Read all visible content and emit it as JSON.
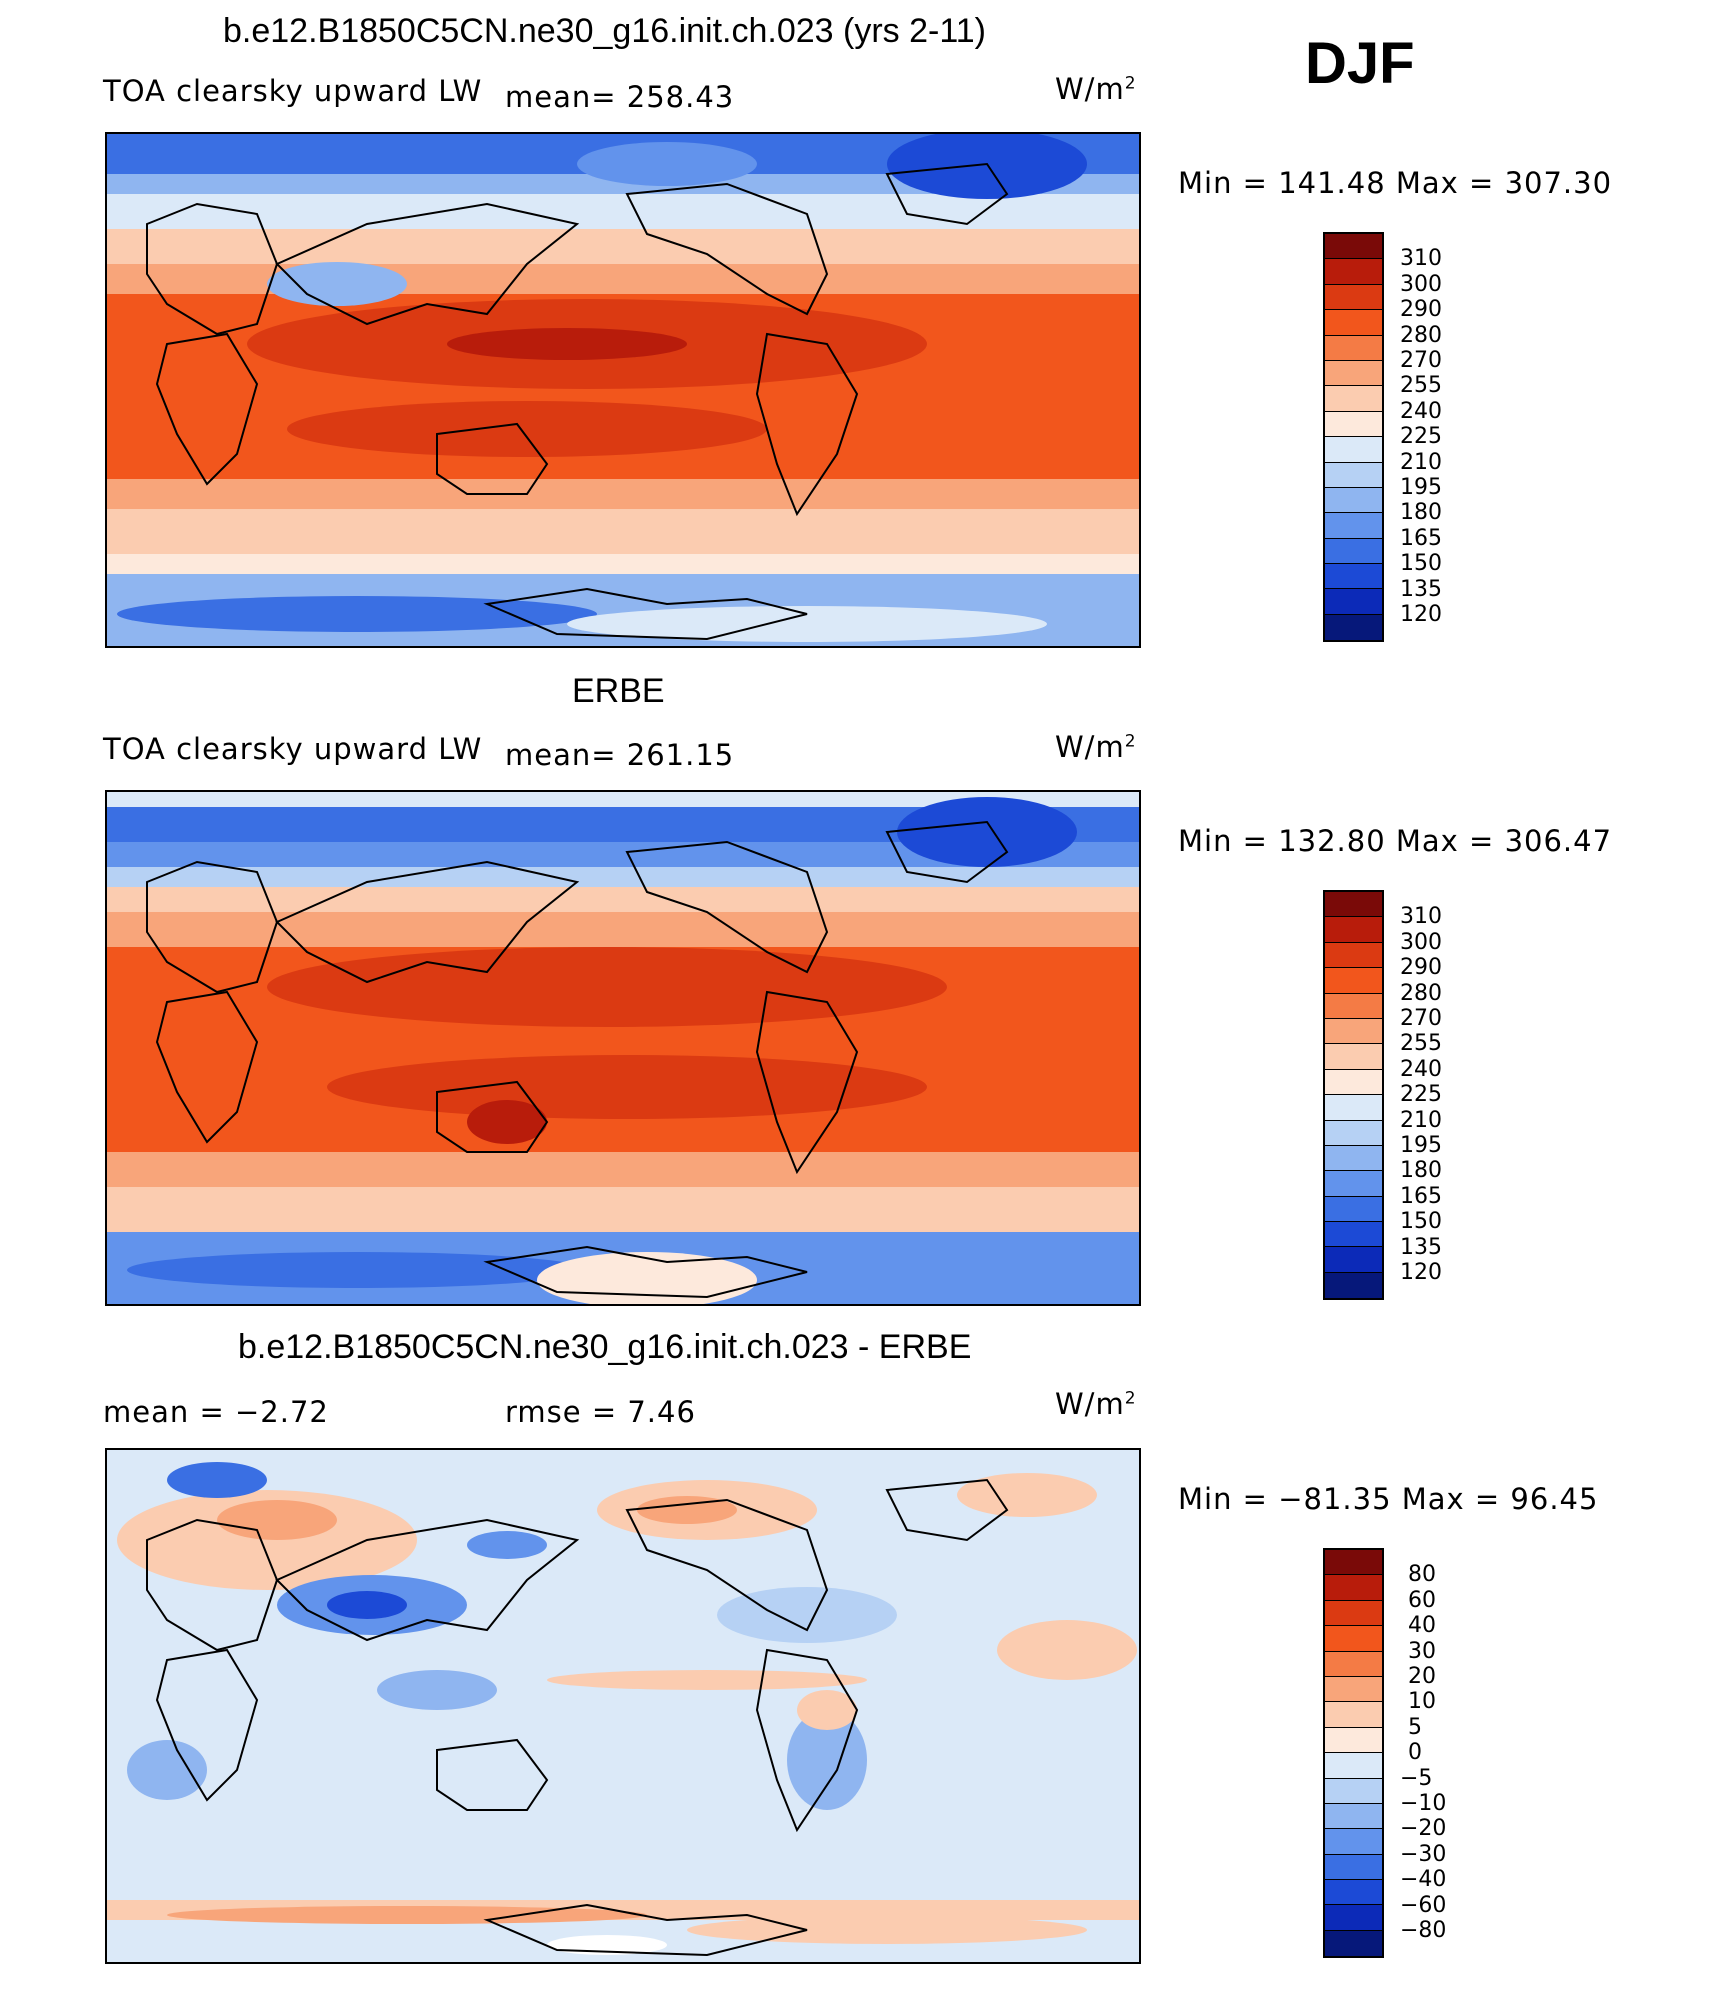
{
  "season": "DJF",
  "units_base": "W/m",
  "units_exp": "2",
  "panels": [
    {
      "title": "b.e12.B1850C5CN.ne30_g16.init.ch.023 (yrs 2-11)",
      "variable": "TOA clearsky upward LW",
      "stat1": "mean=  258.43",
      "minmax": "Min  =  141.48  Max  =  307.30"
    },
    {
      "title": "ERBE",
      "variable": "TOA clearsky upward LW",
      "stat1": "mean=  261.15",
      "minmax": "Min  =  132.80  Max  =  306.47"
    },
    {
      "title": "b.e12.B1850C5CN.ne30_g16.init.ch.023 - ERBE",
      "stat1": "mean  =     −2.72",
      "stat2": "rmse  =     7.46",
      "minmax": "Min  =  −81.35  Max  =    96.45"
    }
  ],
  "colorbars": {
    "absolute": {
      "labels": [
        "310",
        "300",
        "290",
        "280",
        "270",
        "255",
        "240",
        "225",
        "210",
        "195",
        "180",
        "165",
        "150",
        "135",
        "120"
      ],
      "colors": [
        "#7a0a08",
        "#b81c0b",
        "#db3a12",
        "#f2561c",
        "#f47b45",
        "#f8a57a",
        "#fbccb0",
        "#fde9dc",
        "#dbe9f8",
        "#b6d1f4",
        "#8fb5f0",
        "#6293ec",
        "#3a6fe3",
        "#1c4ad6",
        "#0c2ab8",
        "#06187a"
      ]
    },
    "difference": {
      "labels": [
        "80",
        "60",
        "40",
        "30",
        "20",
        "10",
        "5",
        "0",
        "−5",
        "−10",
        "−20",
        "−30",
        "−40",
        "−60",
        "−80"
      ],
      "colors": [
        "#7a0a08",
        "#b81c0b",
        "#db3a12",
        "#f2561c",
        "#f47b45",
        "#f8a57a",
        "#fbccb0",
        "#fde9dc",
        "#dbe9f8",
        "#b6d1f4",
        "#8fb5f0",
        "#6293ec",
        "#3a6fe3",
        "#1c4ad6",
        "#0c2ab8",
        "#06187a"
      ]
    }
  }
}
